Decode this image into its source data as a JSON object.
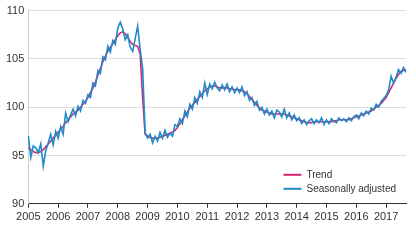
{
  "chart_data": {
    "type": "line",
    "categories": [
      "2005",
      null,
      null,
      null,
      null,
      null,
      null,
      null,
      null,
      null,
      null,
      null,
      "2006",
      null,
      null,
      null,
      null,
      null,
      null,
      null,
      null,
      null,
      null,
      null,
      "2007",
      null,
      null,
      null,
      null,
      null,
      null,
      null,
      null,
      null,
      null,
      null,
      "2008",
      null,
      null,
      null,
      null,
      null,
      null,
      null,
      null,
      null,
      null,
      null,
      "2009",
      null,
      null,
      null,
      null,
      null,
      null,
      null,
      null,
      null,
      null,
      null,
      "2010",
      null,
      null,
      null,
      null,
      null,
      null,
      null,
      null,
      null,
      null,
      null,
      "2011",
      null,
      null,
      null,
      null,
      null,
      null,
      null,
      null,
      null,
      null,
      null,
      "2012",
      null,
      null,
      null,
      null,
      null,
      null,
      null,
      null,
      null,
      null,
      null,
      "2013",
      null,
      null,
      null,
      null,
      null,
      null,
      null,
      null,
      null,
      null,
      null,
      "2014",
      null,
      null,
      null,
      null,
      null,
      null,
      null,
      null,
      null,
      null,
      null,
      "2015",
      null,
      null,
      null,
      null,
      null,
      null,
      null,
      null,
      null,
      null,
      null,
      "2016",
      null,
      null,
      null,
      null,
      null,
      null,
      null,
      null,
      null,
      null,
      null,
      "2017",
      null,
      null,
      null,
      null,
      null,
      null,
      null,
      null
    ],
    "series": [
      {
        "name": "Trend",
        "color": "#d9236d",
        "values": [
          95.8,
          95.6,
          95.4,
          95.3,
          95.3,
          95.4,
          95.6,
          95.9,
          96.2,
          96.5,
          96.8,
          97.1,
          97.4,
          97.7,
          98.0,
          98.4,
          98.7,
          99.0,
          99.3,
          99.5,
          99.7,
          100.0,
          100.3,
          100.6,
          101.0,
          101.5,
          102.0,
          102.6,
          103.3,
          104.0,
          104.7,
          105.3,
          105.8,
          106.2,
          106.6,
          107.0,
          107.4,
          107.7,
          107.8,
          107.6,
          107.2,
          106.8,
          106.5,
          106.4,
          106.3,
          105.5,
          101.0,
          97.2,
          97.0,
          96.9,
          96.8,
          96.8,
          96.8,
          96.9,
          97.0,
          97.1,
          97.2,
          97.3,
          97.4,
          97.6,
          97.9,
          98.3,
          98.7,
          99.1,
          99.5,
          99.9,
          100.2,
          100.5,
          100.8,
          101.1,
          101.4,
          101.7,
          101.9,
          102.1,
          102.2,
          102.2,
          102.1,
          102.0,
          102.0,
          102.0,
          102.0,
          101.9,
          101.9,
          101.8,
          101.8,
          101.8,
          101.7,
          101.6,
          101.4,
          101.1,
          100.8,
          100.5,
          100.2,
          99.9,
          99.7,
          99.6,
          99.5,
          99.4,
          99.3,
          99.3,
          99.3,
          99.3,
          99.3,
          99.3,
          99.2,
          99.1,
          99.0,
          98.9,
          98.8,
          98.7,
          98.6,
          98.5,
          98.4,
          98.4,
          98.4,
          98.5,
          98.5,
          98.5,
          98.5,
          98.5,
          98.5,
          98.5,
          98.5,
          98.6,
          98.6,
          98.7,
          98.7,
          98.7,
          98.7,
          98.7,
          98.8,
          98.9,
          99.0,
          99.1,
          99.2,
          99.3,
          99.4,
          99.5,
          99.6,
          99.8,
          100.0,
          100.2,
          100.4,
          100.7,
          101.0,
          101.5,
          102.0,
          102.5,
          103.0,
          103.4,
          103.7,
          103.8,
          103.9
        ]
      },
      {
        "name": "Seasonally adjusted",
        "color": "#1f8bc8",
        "values": [
          97.0,
          94.8,
          96.0,
          95.8,
          95.3,
          96.2,
          93.9,
          95.5,
          96.3,
          97.2,
          96.1,
          97.5,
          96.8,
          98.0,
          97.2,
          99.4,
          98.5,
          99.2,
          99.8,
          99.1,
          100.1,
          99.6,
          100.7,
          100.4,
          101.3,
          101.0,
          102.5,
          102.2,
          103.8,
          103.5,
          105.2,
          104.9,
          106.3,
          105.7,
          106.9,
          106.5,
          108.2,
          108.8,
          108.1,
          107.0,
          107.5,
          106.2,
          105.8,
          107.1,
          108.4,
          106.0,
          104.0,
          97.4,
          96.8,
          97.2,
          96.3,
          97.0,
          96.5,
          97.4,
          96.8,
          97.6,
          96.9,
          97.3,
          97.0,
          98.2,
          98.0,
          98.8,
          98.3,
          99.6,
          99.0,
          100.3,
          99.8,
          101.0,
          100.4,
          101.6,
          101.0,
          102.5,
          101.3,
          102.4,
          101.9,
          102.6,
          102.0,
          101.7,
          102.3,
          101.8,
          102.4,
          101.6,
          102.1,
          101.5,
          102.0,
          101.5,
          102.1,
          101.2,
          101.6,
          100.7,
          101.0,
          100.2,
          100.6,
          99.7,
          100.0,
          99.3,
          99.8,
          99.2,
          99.6,
          98.9,
          99.7,
          99.5,
          99.0,
          99.8,
          98.9,
          99.4,
          98.7,
          99.2,
          98.6,
          98.9,
          98.3,
          98.7,
          98.2,
          98.6,
          98.8,
          98.3,
          98.7,
          98.4,
          98.9,
          98.2,
          98.7,
          98.3,
          98.8,
          98.5,
          98.4,
          98.9,
          98.6,
          98.8,
          98.5,
          98.9,
          98.6,
          99.0,
          99.2,
          98.8,
          99.4,
          99.1,
          99.6,
          99.3,
          99.9,
          99.7,
          100.3,
          100.0,
          100.6,
          100.9,
          101.2,
          101.8,
          103.2,
          102.5,
          103.1,
          103.9,
          103.5,
          104.1,
          103.6
        ]
      }
    ],
    "ylim": [
      90,
      110
    ],
    "yticks": [
      90,
      95,
      100,
      105,
      110
    ],
    "grid": true,
    "legend": "lower right"
  }
}
